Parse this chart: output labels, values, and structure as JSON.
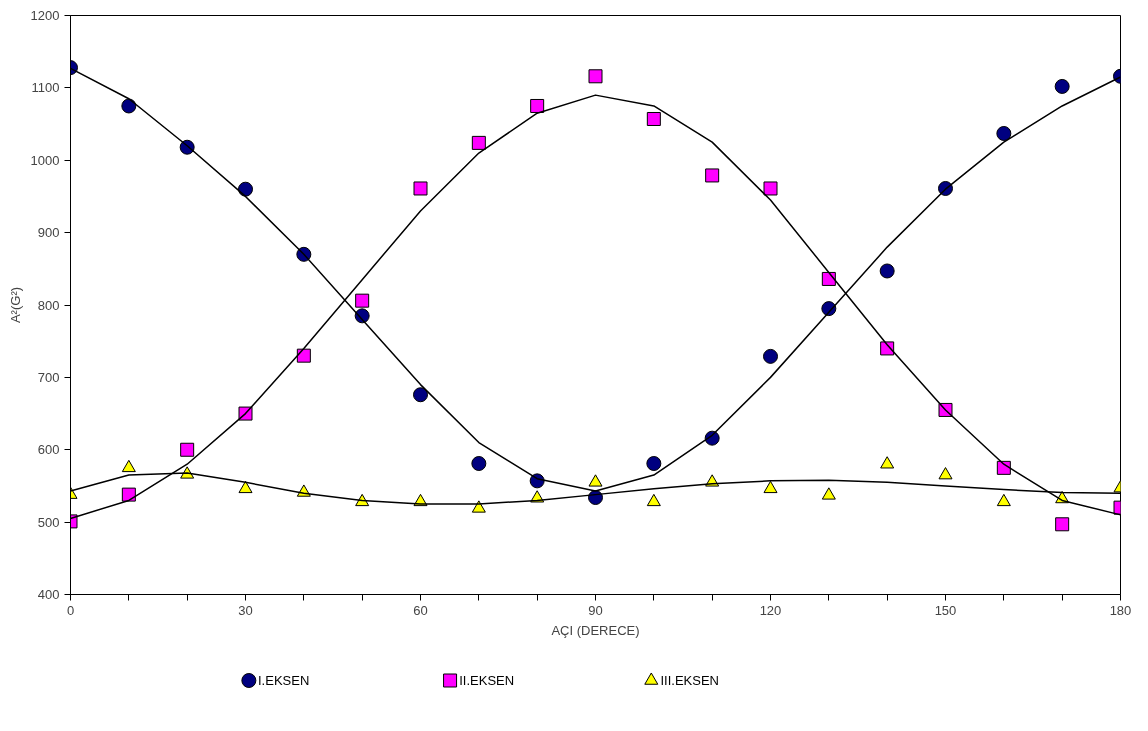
{
  "chart_data": {
    "type": "scatter",
    "xlabel": "AÇI (DERECE)",
    "ylabel": "A²(G²)",
    "x": [
      0,
      10,
      20,
      30,
      40,
      50,
      60,
      70,
      80,
      90,
      100,
      110,
      120,
      130,
      140,
      150,
      160,
      170,
      180
    ],
    "xlim": [
      0,
      180
    ],
    "ylim": [
      400,
      1200
    ],
    "xticks": [
      0,
      {
        "value": 10,
        "label": null
      },
      {
        "value": 20,
        "label": null
      },
      30,
      {
        "value": 40,
        "label": null
      },
      {
        "value": 50,
        "label": null
      },
      60,
      {
        "value": 70,
        "label": null
      },
      {
        "value": 80,
        "label": null
      },
      90,
      {
        "value": 100,
        "label": null
      },
      {
        "value": 110,
        "label": null
      },
      120,
      {
        "value": 130,
        "label": null
      },
      {
        "value": 140,
        "label": null
      },
      150,
      {
        "value": 160,
        "label": null
      },
      {
        "value": 170,
        "label": null
      },
      180
    ],
    "yticks": [
      400,
      500,
      600,
      700,
      800,
      900,
      1000,
      1100,
      1200
    ],
    "grid": false,
    "legend": "bottom",
    "series": [
      {
        "name": "I.EKSEN",
        "color": "#000080",
        "marker": "circle",
        "values": [
          1128,
          1075,
          1018,
          960,
          870,
          785,
          676,
          581,
          557,
          534,
          581,
          616,
          729,
          795,
          847,
          961,
          1037,
          1102,
          1116
        ]
      },
      {
        "name": "II.EKSEN",
        "color": "#ff00ff",
        "marker": "square",
        "values": [
          501,
          538,
          600,
          650,
          730,
          806,
          961,
          1024,
          1075,
          1116,
          1057,
          979,
          961,
          836,
          740,
          655,
          575,
          497,
          520
        ]
      },
      {
        "name": "III.EKSEN",
        "color": "#ffff00",
        "marker": "triangle",
        "values": [
          538,
          575,
          566,
          546,
          541,
          528,
          528,
          519,
          533,
          555,
          528,
          555,
          546,
          537,
          580,
          565,
          528,
          532,
          547
        ]
      },
      {
        "type": "line",
        "color": "#000000",
        "x": [
          0,
          10,
          20,
          30,
          40,
          50,
          60,
          70,
          80,
          90,
          100,
          110,
          120,
          130,
          140,
          150,
          160,
          170,
          180
        ],
        "values": [
          1127,
          1085,
          1020,
          950,
          870,
          780,
          690,
          610,
          560,
          543,
          565,
          620,
          700,
          790,
          880,
          960,
          1025,
          1075,
          1115
        ]
      },
      {
        "type": "line",
        "color": "#000000",
        "x": [
          0,
          10,
          20,
          30,
          40,
          50,
          60,
          70,
          80,
          90,
          100,
          110,
          120,
          130,
          140,
          150,
          160,
          170,
          180
        ],
        "values": [
          505,
          530,
          580,
          650,
          740,
          835,
          930,
          1010,
          1065,
          1090,
          1075,
          1025,
          945,
          845,
          745,
          655,
          580,
          530,
          510
        ]
      },
      {
        "type": "line",
        "color": "#000000",
        "x": [
          0,
          10,
          20,
          30,
          40,
          50,
          60,
          70,
          80,
          90,
          100,
          110,
          120,
          130,
          140,
          150,
          160,
          170,
          180
        ],
        "values": [
          543,
          565,
          568,
          555,
          540,
          530,
          525,
          525,
          530,
          538,
          546,
          553,
          557,
          558,
          555,
          550,
          545,
          541,
          540
        ]
      }
    ]
  }
}
